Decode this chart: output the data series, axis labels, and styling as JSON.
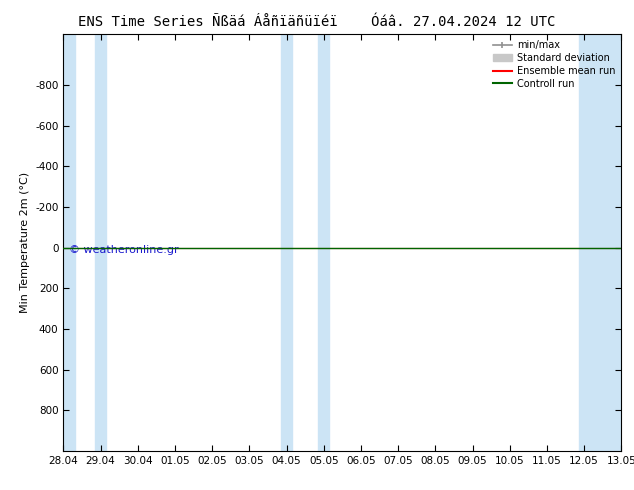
{
  "title": "ENS Time Series Ñßäá Áåñïäñüïéï",
  "title2": "Óáâ. 27.04.2024 12 UTC",
  "ylabel": "Min Temperature 2m (°C)",
  "xlim_start": 0,
  "xlim_end": 15,
  "ylim_bottom": 1000,
  "ylim_top": -1050,
  "yticks": [
    -800,
    -600,
    -400,
    -200,
    0,
    200,
    400,
    600,
    800
  ],
  "xtick_labels": [
    "28.04",
    "29.04",
    "30.04",
    "01.05",
    "02.05",
    "03.05",
    "04.05",
    "05.05",
    "06.05",
    "07.05",
    "08.05",
    "09.05",
    "10.05",
    "11.05",
    "12.05",
    "13.05"
  ],
  "xtick_positions": [
    0,
    1,
    2,
    3,
    4,
    5,
    6,
    7,
    8,
    9,
    10,
    11,
    12,
    13,
    14,
    15
  ],
  "shaded_bands": [
    {
      "x_start": 0,
      "x_end": 0.3
    },
    {
      "x_start": 0.85,
      "x_end": 1.15
    },
    {
      "x_start": 5.85,
      "x_end": 6.15
    },
    {
      "x_start": 6.85,
      "x_end": 7.15
    },
    {
      "x_start": 13.85,
      "x_end": 15.0
    }
  ],
  "band_color": "#cce4f5",
  "control_run_color": "#006400",
  "ensemble_mean_color": "#ff0000",
  "std_dev_color": "#c8c8c8",
  "minmax_color": "#909090",
  "background_color": "#ffffff",
  "plot_bg_color": "#ffffff",
  "watermark": "© weatheronline.gr",
  "watermark_color": "#1a1acd",
  "legend_items": [
    "min/max",
    "Standard deviation",
    "Ensemble mean run",
    "Controll run"
  ],
  "legend_colors": [
    "#909090",
    "#c8c8c8",
    "#ff0000",
    "#006400"
  ],
  "title_fontsize": 10,
  "axis_fontsize": 8,
  "tick_fontsize": 7.5
}
